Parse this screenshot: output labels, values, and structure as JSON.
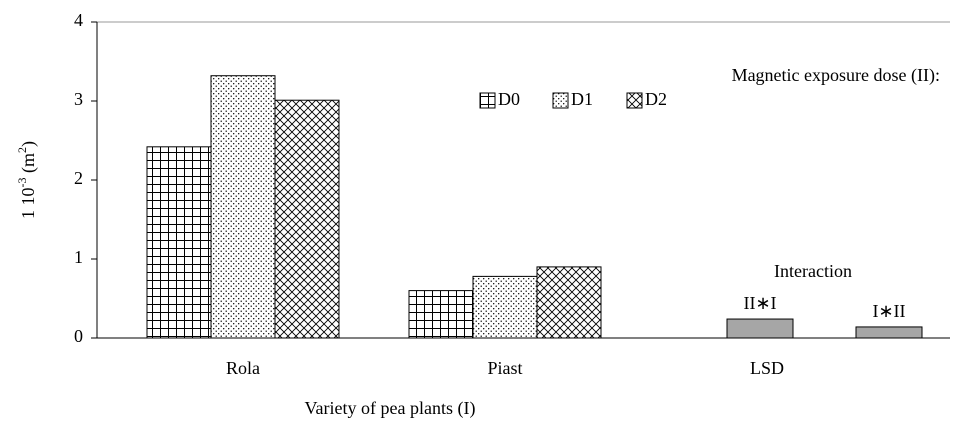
{
  "chart_data": {
    "type": "bar",
    "y_label": {
      "parts": [
        "1 10",
        "-3",
        " (m",
        "2",
        ")"
      ],
      "superscript": [
        false,
        true,
        false,
        true,
        false
      ]
    },
    "x_label": "Variety of pea plants (I)",
    "legend_title": "Magnetic exposure dose (II):",
    "categories": [
      "Rola",
      "Piast",
      "LSD"
    ],
    "series": [
      {
        "name": "D0",
        "color": "#000000",
        "pattern": "grid",
        "values": [
          2.42,
          0.6,
          null
        ]
      },
      {
        "name": "D1",
        "color": "#000000",
        "pattern": "dots",
        "values": [
          3.32,
          0.78,
          null
        ]
      },
      {
        "name": "D2",
        "color": "#000000",
        "pattern": "crosshatch",
        "values": [
          3.01,
          0.9,
          null
        ]
      }
    ],
    "interaction": {
      "title": "Interaction",
      "labels": [
        "II∗I",
        "I∗II"
      ],
      "values": [
        0.24,
        0.14
      ],
      "color": "#a6a6a6"
    },
    "ylim": [
      0,
      4
    ],
    "yticks": [
      0,
      1,
      2,
      3,
      4
    ]
  }
}
